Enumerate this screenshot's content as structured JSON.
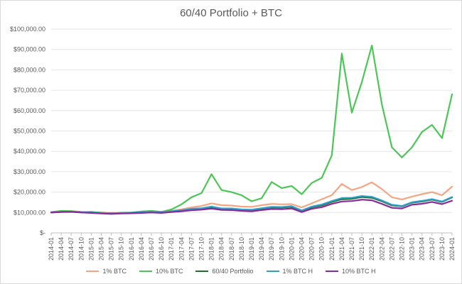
{
  "chart_data": {
    "type": "line",
    "title": "60/40 Portfolio + BTC",
    "xlabel": "",
    "ylabel": "",
    "ylim": [
      0,
      100000
    ],
    "y_ticks": [
      "$-",
      "$10,000.00",
      "$20,000.00",
      "$30,000.00",
      "$40,000.00",
      "$50,000.00",
      "$60,000.00",
      "$70,000.00",
      "$80,000.00",
      "$90,000.00",
      "$100,000.00"
    ],
    "y_tick_values": [
      0,
      10000,
      20000,
      30000,
      40000,
      50000,
      60000,
      70000,
      80000,
      90000,
      100000
    ],
    "grid": true,
    "legend_position": "bottom",
    "categories": [
      "2014-01",
      "2014-04",
      "2014-07",
      "2014-10",
      "2015-01",
      "2015-04",
      "2015-07",
      "2015-10",
      "2016-01",
      "2016-04",
      "2016-07",
      "2016-10",
      "2017-01",
      "2017-04",
      "2017-07",
      "2017-10",
      "2018-01",
      "2018-04",
      "2018-07",
      "2018-10",
      "2019-01",
      "2019-04",
      "2019-07",
      "2019-10",
      "2020-01",
      "2020-04",
      "2020-07",
      "2020-10",
      "2021-01",
      "2021-04",
      "2021-07",
      "2021-10",
      "2022-01",
      "2022-04",
      "2022-07",
      "2022-10",
      "2023-01",
      "2023-04",
      "2023-07",
      "2023-10",
      "2024-01"
    ],
    "series": [
      {
        "name": "1% BTC",
        "color": "#f4a582",
        "values": [
          10200,
          10600,
          10700,
          10300,
          10100,
          10000,
          9800,
          9900,
          10000,
          10200,
          10400,
          10300,
          10800,
          11500,
          12500,
          13200,
          14500,
          13600,
          13400,
          12900,
          12800,
          13600,
          14200,
          14000,
          14100,
          12500,
          14500,
          16500,
          18500,
          24000,
          21000,
          22500,
          24800,
          21500,
          17500,
          16400,
          17800,
          19000,
          20000,
          18500,
          22700
        ]
      },
      {
        "name": "10% BTC",
        "color": "#4cc657",
        "values": [
          10200,
          10800,
          10700,
          10200,
          10300,
          9900,
          9400,
          9800,
          10000,
          10500,
          10800,
          10300,
          11500,
          14000,
          17500,
          19500,
          28800,
          21000,
          20000,
          18500,
          15500,
          17000,
          25000,
          22000,
          23000,
          19000,
          24500,
          27000,
          38000,
          88000,
          59000,
          74000,
          92000,
          63000,
          42000,
          37000,
          42000,
          49500,
          53000,
          46500,
          68000
        ]
      },
      {
        "name": "60/40 Portfolio",
        "color": "#1f6f2e",
        "values": [
          10000,
          10300,
          10400,
          10100,
          10000,
          9800,
          9600,
          9800,
          9900,
          10100,
          10300,
          10100,
          10500,
          11000,
          11600,
          11900,
          12600,
          11800,
          11800,
          11300,
          11200,
          11900,
          12500,
          12400,
          12800,
          10800,
          12600,
          13500,
          15200,
          16500,
          16700,
          17600,
          17200,
          15500,
          13500,
          13000,
          14800,
          15400,
          16300,
          15200,
          17400
        ]
      },
      {
        "name": "1% BTC H",
        "color": "#2f9fc9",
        "values": [
          10000,
          10300,
          10400,
          10100,
          10000,
          9800,
          9600,
          9800,
          9900,
          10100,
          10300,
          10100,
          10600,
          11100,
          11800,
          12100,
          12900,
          12000,
          12000,
          11500,
          11400,
          12100,
          12800,
          12700,
          13100,
          11000,
          12900,
          13900,
          15600,
          17100,
          17200,
          18100,
          17700,
          15900,
          13800,
          13200,
          15000,
          15700,
          16600,
          15400,
          17600
        ]
      },
      {
        "name": "10% BTC H",
        "color": "#8a2a9a",
        "values": [
          10000,
          10200,
          10300,
          10000,
          9800,
          9500,
          9300,
          9500,
          9600,
          9800,
          10000,
          9800,
          10200,
          10600,
          11100,
          11400,
          11900,
          11300,
          11200,
          10800,
          10600,
          11200,
          11700,
          11600,
          12000,
          10200,
          11800,
          12600,
          14200,
          15400,
          15600,
          16300,
          16000,
          14200,
          12300,
          12000,
          13800,
          14300,
          15200,
          14100,
          15800
        ]
      }
    ]
  }
}
